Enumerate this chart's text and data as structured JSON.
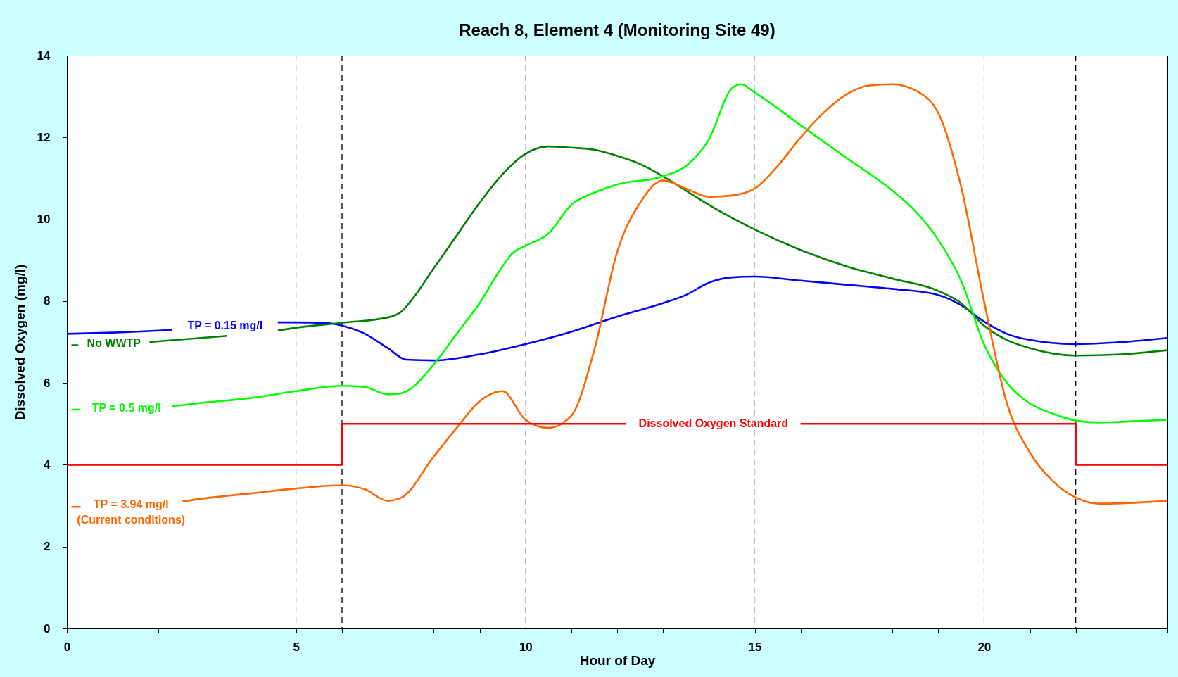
{
  "chart_data": {
    "type": "line",
    "title": "Reach 8, Element 4 (Monitoring Site 49)",
    "xlabel": "Hour of Day",
    "ylabel": "Dissolved Oxygen (mg/l)",
    "xlim": [
      0,
      24
    ],
    "ylim": [
      0,
      14
    ],
    "xticks": [
      0,
      {
        "value": 1,
        "label": null
      },
      {
        "value": 2,
        "label": null
      },
      {
        "value": 3,
        "label": null
      },
      {
        "value": 4,
        "label": null
      },
      5,
      {
        "value": 6,
        "label": null
      },
      {
        "value": 7,
        "label": null
      },
      {
        "value": 8,
        "label": null
      },
      {
        "value": 9,
        "label": null
      },
      10,
      {
        "value": 11,
        "label": null
      },
      {
        "value": 12,
        "label": null
      },
      {
        "value": 13,
        "label": null
      },
      {
        "value": 14,
        "label": null
      },
      15,
      {
        "value": 16,
        "label": null
      },
      {
        "value": 17,
        "label": null
      },
      {
        "value": 18,
        "label": null
      },
      {
        "value": 19,
        "label": null
      },
      20,
      {
        "value": 21,
        "label": null
      },
      {
        "value": 22,
        "label": null
      },
      {
        "value": 23,
        "label": null
      },
      {
        "value": 24,
        "label": null
      }
    ],
    "yticks": [
      0,
      2,
      4,
      6,
      8,
      10,
      12,
      14
    ],
    "marker": "none",
    "line_style": "solid",
    "series": [
      {
        "name": "TP = 0.15 mg/l",
        "color": "#0000ff",
        "x": [
          0,
          1,
          2,
          2.3,
          3.4,
          4.6,
          5,
          5.7,
          6,
          6.5,
          7,
          7.4,
          8,
          9,
          10,
          11,
          12,
          13,
          13.5,
          14,
          14.5,
          15,
          16,
          17,
          18,
          19,
          19.5,
          20,
          20.5,
          21,
          22,
          23,
          24
        ],
        "values": [
          7.2,
          7.23,
          7.28,
          7.3,
          null,
          7.48,
          7.48,
          7.46,
          7.4,
          7.2,
          6.85,
          6.57,
          6.55,
          6.7,
          6.95,
          7.25,
          7.62,
          7.95,
          8.15,
          8.45,
          8.58,
          8.6,
          8.5,
          8.4,
          8.3,
          8.15,
          7.9,
          7.5,
          7.2,
          7.05,
          6.95,
          7.0,
          7.1
        ]
      },
      {
        "name": "No WWTP",
        "color": "#008000",
        "x": [
          0.1,
          0.25,
          1,
          1.8,
          3.5,
          4.1,
          4.6,
          5,
          6,
          7,
          7.3,
          7.5,
          8,
          8.5,
          9,
          9.5,
          10,
          10.5,
          11,
          11.5,
          12,
          12.5,
          13,
          13.5,
          14,
          15,
          16,
          17,
          18,
          19,
          19.5,
          20,
          20.5,
          21,
          22,
          23,
          24
        ],
        "values": [
          6.92,
          6.92,
          null,
          7.0,
          7.15,
          null,
          7.28,
          7.35,
          7.47,
          7.6,
          7.75,
          8.0,
          8.8,
          9.6,
          10.4,
          11.1,
          11.6,
          11.78,
          11.75,
          11.7,
          11.55,
          11.35,
          11.05,
          10.7,
          10.35,
          9.75,
          9.25,
          8.85,
          8.55,
          8.25,
          7.95,
          7.4,
          7.05,
          6.85,
          6.67,
          6.7,
          6.8
        ]
      },
      {
        "name": "TP = 0.5 mg/l",
        "color": "#00ff00",
        "x": [
          0.1,
          0.3,
          1.3,
          2.3,
          3,
          4,
          5,
          6,
          6.5,
          7,
          7.3,
          8,
          8.5,
          9,
          9.5,
          9.75,
          10,
          10.5,
          11,
          11.5,
          12,
          13,
          13.5,
          14,
          14.5,
          14.7,
          15,
          16,
          17,
          18,
          18.5,
          19,
          19.5,
          20,
          20.5,
          21,
          21.5,
          22,
          22.5,
          23,
          24
        ],
        "values": [
          5.35,
          5.35,
          null,
          5.43,
          5.52,
          5.63,
          5.8,
          5.93,
          5.9,
          5.72,
          5.75,
          6.45,
          7.2,
          7.95,
          8.85,
          9.2,
          9.35,
          9.65,
          10.35,
          10.65,
          10.85,
          11.05,
          11.3,
          11.95,
          13.2,
          13.3,
          13.1,
          12.3,
          11.5,
          10.7,
          10.2,
          9.5,
          8.5,
          6.95,
          6.0,
          5.5,
          5.25,
          5.08,
          5.03,
          5.05,
          5.1
        ]
      },
      {
        "name": "TP = 3.94 mg/l\n(Current conditions)",
        "color": "#ff6600",
        "x": [
          0.1,
          0.3,
          1.4,
          2.5,
          3,
          4,
          5,
          6,
          6.5,
          7,
          7.3,
          8,
          8.5,
          9,
          9.5,
          10,
          10.5,
          11,
          11.5,
          12,
          12.5,
          13,
          13.5,
          14,
          14.5,
          15,
          15.5,
          16,
          16.5,
          17,
          17.5,
          18,
          18.5,
          19,
          19.5,
          20,
          20.5,
          21,
          21.5,
          22,
          22.5,
          23,
          24
        ],
        "values": [
          2.97,
          2.97,
          null,
          3.1,
          3.18,
          3.3,
          3.42,
          3.5,
          3.4,
          3.12,
          3.2,
          4.2,
          4.9,
          5.55,
          5.8,
          5.1,
          4.9,
          5.2,
          6.8,
          9.2,
          10.4,
          10.95,
          10.75,
          10.55,
          10.58,
          10.75,
          11.3,
          12.0,
          12.6,
          13.05,
          13.27,
          13.3,
          13.15,
          12.6,
          10.8,
          8.0,
          5.5,
          4.3,
          3.6,
          3.2,
          3.05,
          3.06,
          3.12
        ]
      },
      {
        "name": "Dissolved Oxygen Standard",
        "color": "#ff0000",
        "x": [
          0,
          6,
          6,
          12.2,
          14.1,
          16,
          22,
          22,
          24
        ],
        "values": [
          4,
          4,
          5,
          5,
          null,
          5,
          5,
          4,
          4
        ]
      }
    ],
    "ref_lines": [
      {
        "axis": "x",
        "value": 5,
        "color": "#c0c0c0",
        "line_style": "dashed"
      },
      {
        "axis": "x",
        "value": 10,
        "color": "#c0c0c0",
        "line_style": "dashed"
      },
      {
        "axis": "x",
        "value": 15,
        "color": "#c0c0c0",
        "line_style": "dashed"
      },
      {
        "axis": "x",
        "value": 20,
        "color": "#c0c0c0",
        "line_style": "dashed"
      },
      {
        "axis": "x",
        "value": 6,
        "color": "#000000",
        "line_style": "dashed"
      },
      {
        "axis": "x",
        "value": 22,
        "color": "#000000",
        "line_style": "dashed"
      }
    ]
  }
}
